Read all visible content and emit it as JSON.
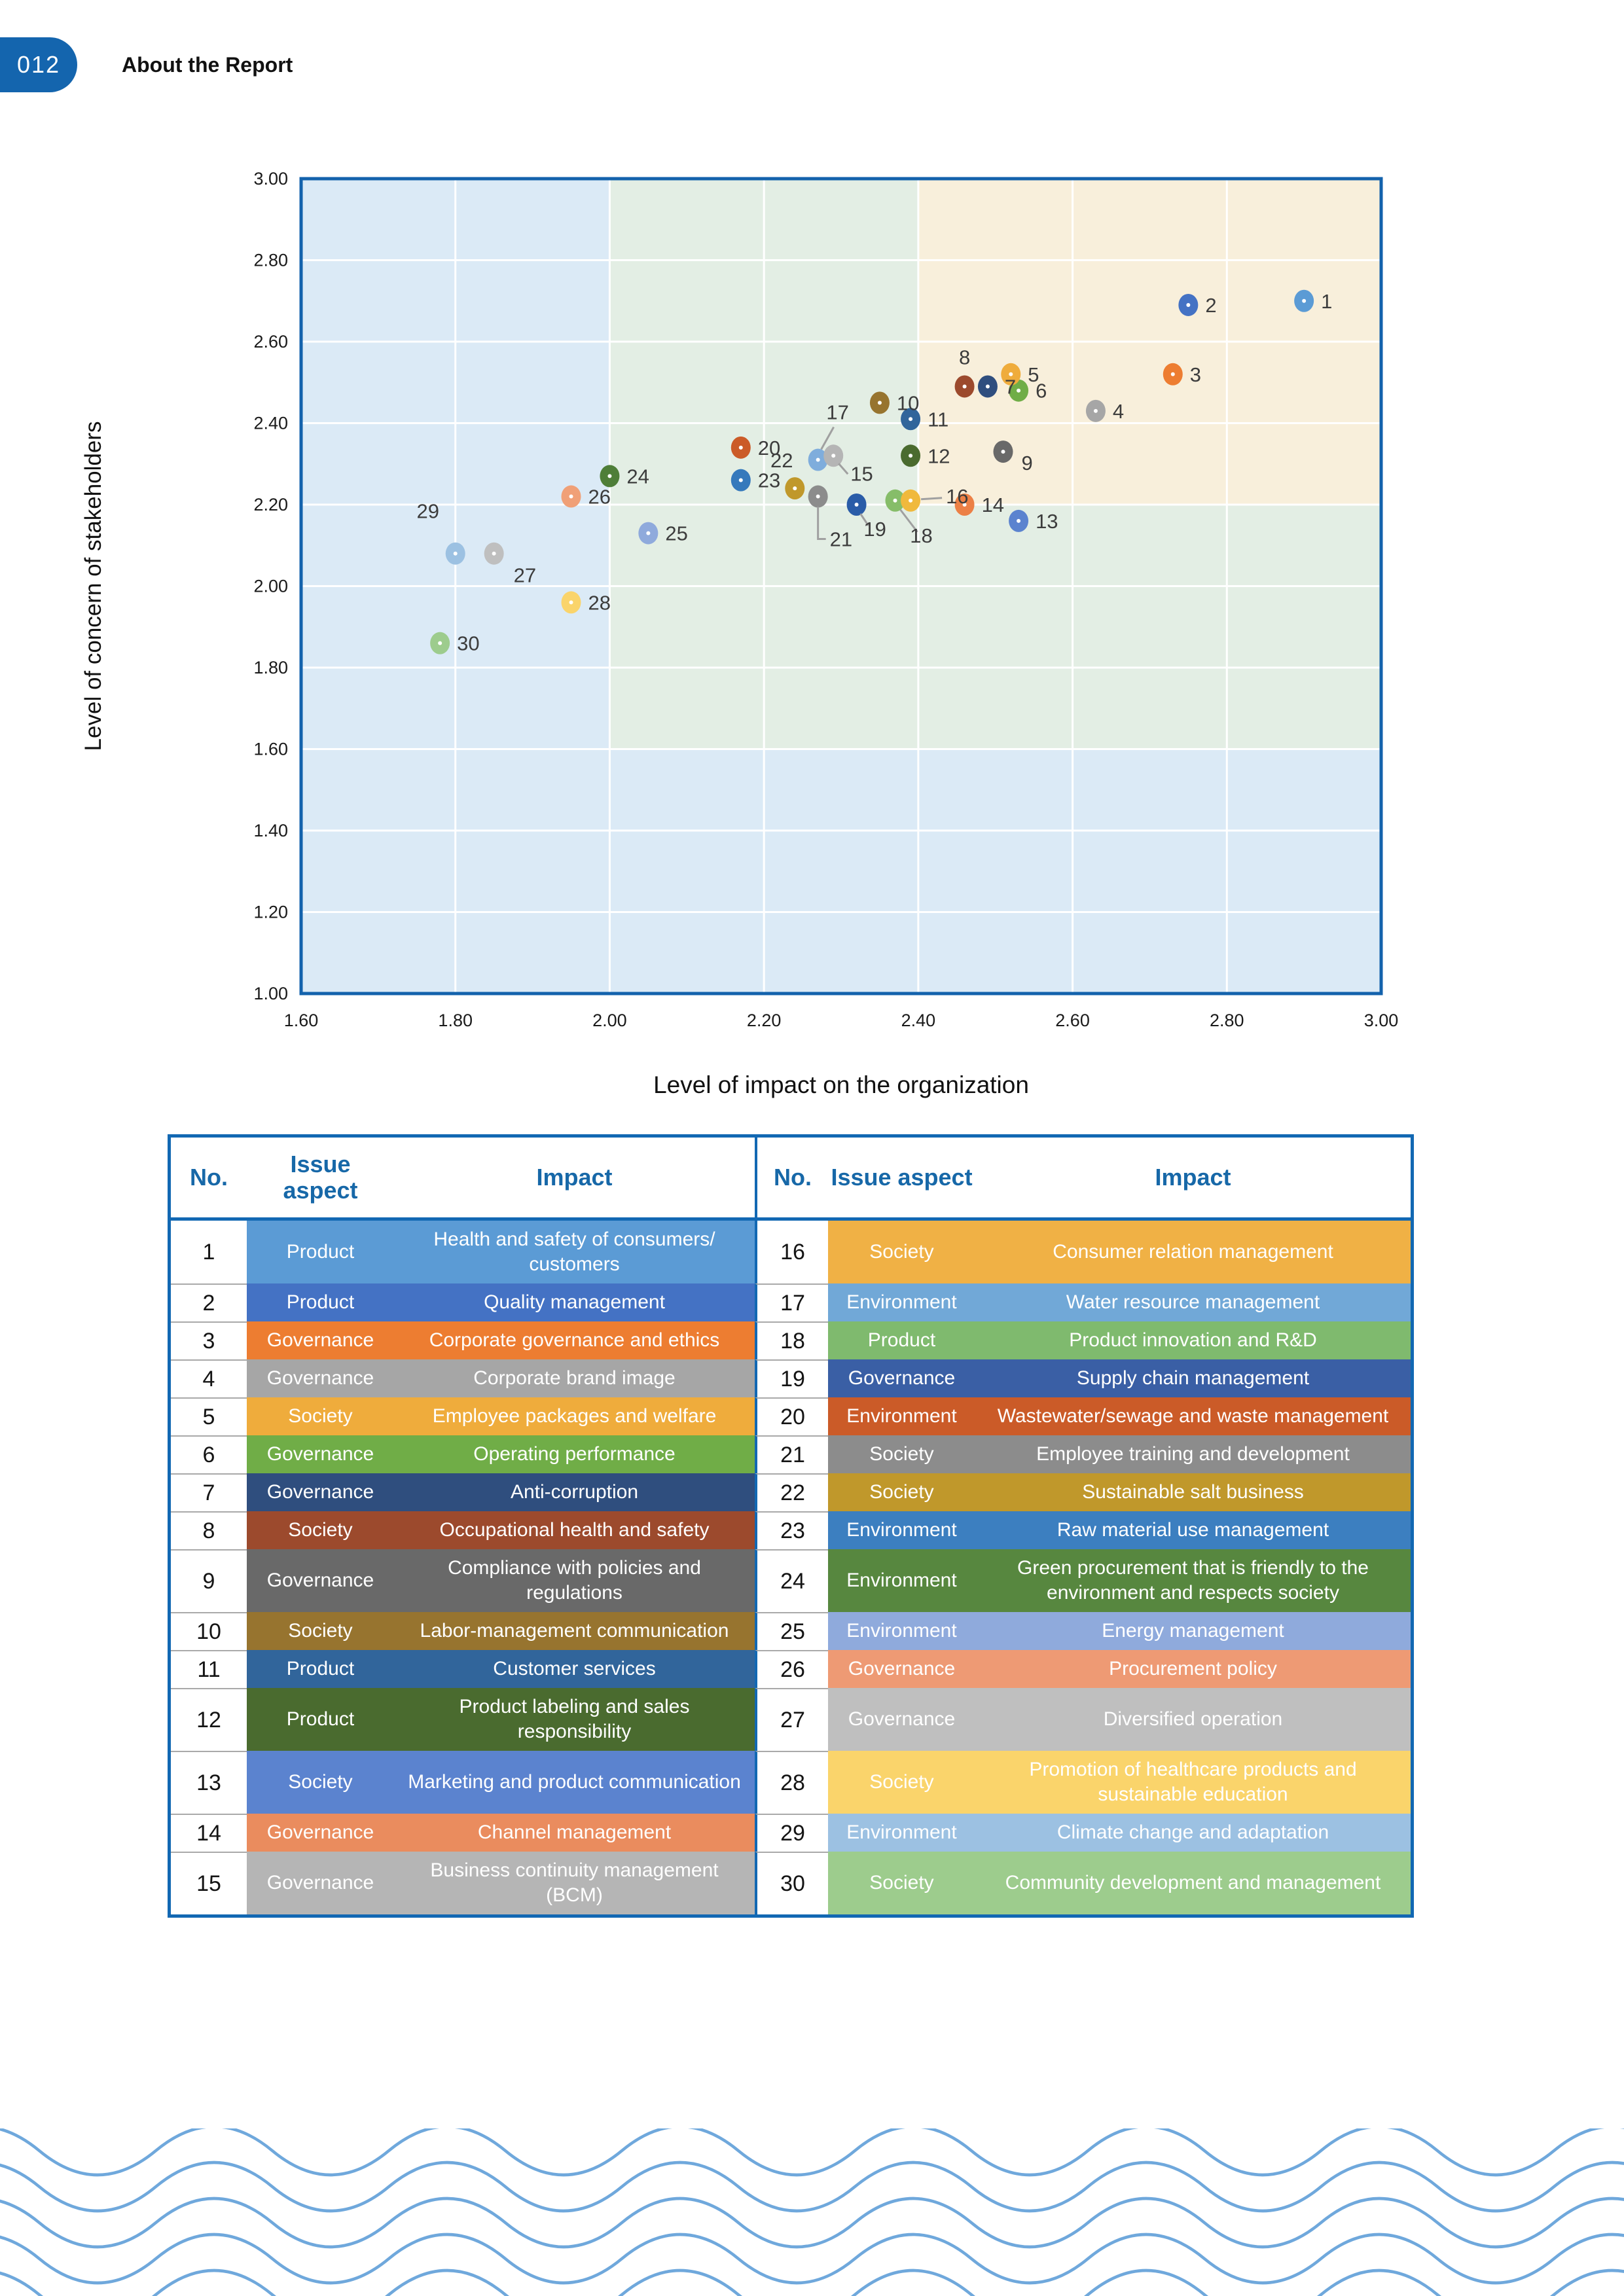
{
  "page": {
    "number": "012",
    "section_title": "About the Report"
  },
  "chart_data": {
    "type": "scatter",
    "xlabel": "Level of impact on the organization",
    "ylabel": "Level of concern of stakeholders",
    "xlim": [
      1.6,
      3.0
    ],
    "ylim": [
      1.0,
      3.0
    ],
    "xticks": [
      "1.60",
      "1.80",
      "2.00",
      "2.20",
      "2.40",
      "2.60",
      "2.80",
      "3.00"
    ],
    "yticks": [
      "3.00",
      "2.80",
      "2.60",
      "2.40",
      "2.20",
      "2.00",
      "1.80",
      "1.60",
      "1.40",
      "1.20",
      "1.00"
    ],
    "grid": "white gridlines every 0.20",
    "regions": [
      {
        "name": "base",
        "x": [
          1.6,
          3.0
        ],
        "y": [
          1.0,
          3.0
        ],
        "color": "#DBEAF6"
      },
      {
        "name": "medium",
        "x": [
          2.0,
          3.0
        ],
        "y": [
          1.6,
          3.0
        ],
        "color": "#E3EEE4"
      },
      {
        "name": "high",
        "x": [
          2.4,
          3.0
        ],
        "y": [
          2.2,
          3.0
        ],
        "color": "#F8EFDB"
      }
    ],
    "border_color": "#1362AC",
    "points": [
      {
        "no": 1,
        "x": 2.9,
        "y": 2.7,
        "color": "#5B9BD5"
      },
      {
        "no": 2,
        "x": 2.75,
        "y": 2.69,
        "color": "#4472C4"
      },
      {
        "no": 3,
        "x": 2.73,
        "y": 2.52,
        "color": "#ED7D31"
      },
      {
        "no": 4,
        "x": 2.63,
        "y": 2.43,
        "color": "#A6A6A6"
      },
      {
        "no": 5,
        "x": 2.52,
        "y": 2.52,
        "color": "#EFAC3C"
      },
      {
        "no": 6,
        "x": 2.53,
        "y": 2.48,
        "color": "#70AD47"
      },
      {
        "no": 7,
        "x": 2.49,
        "y": 2.49,
        "color": "#2F4E7E"
      },
      {
        "no": 8,
        "x": 2.46,
        "y": 2.49,
        "color": "#9C4A2D"
      },
      {
        "no": 9,
        "x": 2.51,
        "y": 2.33,
        "color": "#696969"
      },
      {
        "no": 10,
        "x": 2.35,
        "y": 2.45,
        "color": "#97742F"
      },
      {
        "no": 11,
        "x": 2.39,
        "y": 2.41,
        "color": "#31659B"
      },
      {
        "no": 12,
        "x": 2.39,
        "y": 2.32,
        "color": "#4A6B2F"
      },
      {
        "no": 13,
        "x": 2.53,
        "y": 2.16,
        "color": "#5B83CF"
      },
      {
        "no": 14,
        "x": 2.46,
        "y": 2.2,
        "color": "#EC8046"
      },
      {
        "no": 15,
        "x": 2.29,
        "y": 2.32,
        "color": "#B5B5B5"
      },
      {
        "no": 16,
        "x": 2.39,
        "y": 2.21,
        "color": "#F0B93D"
      },
      {
        "no": 17,
        "x": 2.27,
        "y": 2.31,
        "color": "#7FADDC"
      },
      {
        "no": 18,
        "x": 2.37,
        "y": 2.21,
        "color": "#86BD69"
      },
      {
        "no": 19,
        "x": 2.32,
        "y": 2.2,
        "color": "#2A5CA8"
      },
      {
        "no": 20,
        "x": 2.17,
        "y": 2.34,
        "color": "#CB5B28"
      },
      {
        "no": 21,
        "x": 2.27,
        "y": 2.22,
        "color": "#8C8C8C"
      },
      {
        "no": 22,
        "x": 2.24,
        "y": 2.24,
        "color": "#C0982B"
      },
      {
        "no": 23,
        "x": 2.17,
        "y": 2.26,
        "color": "#3579BC"
      },
      {
        "no": 24,
        "x": 2.0,
        "y": 2.27,
        "color": "#4E7E38"
      },
      {
        "no": 25,
        "x": 2.05,
        "y": 2.13,
        "color": "#8FAADC"
      },
      {
        "no": 26,
        "x": 1.95,
        "y": 2.22,
        "color": "#F0A077"
      },
      {
        "no": 27,
        "x": 1.85,
        "y": 2.08,
        "color": "#BFBFBF"
      },
      {
        "no": 28,
        "x": 1.95,
        "y": 1.96,
        "color": "#FAD46B"
      },
      {
        "no": 29,
        "x": 1.8,
        "y": 2.08,
        "color": "#9CC1E2"
      },
      {
        "no": 30,
        "x": 1.78,
        "y": 1.86,
        "color": "#9DCC8D"
      }
    ]
  },
  "table": {
    "headers": {
      "no": "No.",
      "aspect": "Issue aspect",
      "impact": "Impact"
    },
    "rows_left": [
      {
        "no": "1",
        "aspect": "Product",
        "impact": "Health and safety of consumers/ customers",
        "color": "#5B9BD5"
      },
      {
        "no": "2",
        "aspect": "Product",
        "impact": "Quality management",
        "color": "#4472C4"
      },
      {
        "no": "3",
        "aspect": "Governance",
        "impact": "Corporate governance and ethics",
        "color": "#ED7D31"
      },
      {
        "no": "4",
        "aspect": "Governance",
        "impact": "Corporate brand image",
        "color": "#A6A6A6"
      },
      {
        "no": "5",
        "aspect": "Society",
        "impact": "Employee packages and welfare",
        "color": "#EFAC3C"
      },
      {
        "no": "6",
        "aspect": "Governance",
        "impact": "Operating performance",
        "color": "#70AD47"
      },
      {
        "no": "7",
        "aspect": "Governance",
        "impact": "Anti-corruption",
        "color": "#2F4E7E"
      },
      {
        "no": "8",
        "aspect": "Society",
        "impact": "Occupational health and safety",
        "color": "#9C4A2D"
      },
      {
        "no": "9",
        "aspect": "Governance",
        "impact": "Compliance with policies and regulations",
        "color": "#696969"
      },
      {
        "no": "10",
        "aspect": "Society",
        "impact": "Labor-management communication",
        "color": "#97742F"
      },
      {
        "no": "11",
        "aspect": "Product",
        "impact": "Customer services",
        "color": "#31659B"
      },
      {
        "no": "12",
        "aspect": "Product",
        "impact": "Product labeling and sales responsibility",
        "color": "#4A6B2F"
      },
      {
        "no": "13",
        "aspect": "Society",
        "impact": "Marketing and product communication",
        "color": "#5B83CF"
      },
      {
        "no": "14",
        "aspect": "Governance",
        "impact": "Channel management",
        "color": "#EA8C5E"
      },
      {
        "no": "15",
        "aspect": "Governance",
        "impact": "Business continuity management (BCM)",
        "color": "#B5B5B5"
      }
    ],
    "rows_right": [
      {
        "no": "16",
        "aspect": "Society",
        "impact": "Consumer relation management",
        "color": "#F0B145"
      },
      {
        "no": "17",
        "aspect": "Environment",
        "impact": "Water resource management",
        "color": "#71A8D7"
      },
      {
        "no": "18",
        "aspect": "Product",
        "impact": "Product innovation and R&D",
        "color": "#7FBA6E"
      },
      {
        "no": "19",
        "aspect": "Governance",
        "impact": "Supply chain management",
        "color": "#3A5FA5"
      },
      {
        "no": "20",
        "aspect": "Environment",
        "impact": "Wastewater/sewage and waste management",
        "color": "#CB5B28"
      },
      {
        "no": "21",
        "aspect": "Society",
        "impact": "Employee training and development",
        "color": "#8C8C8C"
      },
      {
        "no": "22",
        "aspect": "Society",
        "impact": "Sustainable salt business",
        "color": "#C0982B"
      },
      {
        "no": "23",
        "aspect": "Environment",
        "impact": "Raw material use management",
        "color": "#3C7FC0"
      },
      {
        "no": "24",
        "aspect": "Environment",
        "impact": "Green procurement that is friendly to the environment and respects society",
        "color": "#57873F"
      },
      {
        "no": "25",
        "aspect": "Environment",
        "impact": "Energy management",
        "color": "#8FAADC"
      },
      {
        "no": "26",
        "aspect": "Governance",
        "impact": "Procurement policy",
        "color": "#EE9A74"
      },
      {
        "no": "27",
        "aspect": "Governance",
        "impact": "Diversified operation",
        "color": "#BFBFBF"
      },
      {
        "no": "28",
        "aspect": "Society",
        "impact": "Promotion of healthcare products and sustainable education",
        "color": "#FAD46B"
      },
      {
        "no": "29",
        "aspect": "Environment",
        "impact": "Climate change and adaptation",
        "color": "#9CC1E2"
      },
      {
        "no": "30",
        "aspect": "Society",
        "impact": "Community development and management",
        "color": "#9DCC8D"
      }
    ]
  },
  "decoration": {
    "wave_color": "#6FA8DC"
  }
}
